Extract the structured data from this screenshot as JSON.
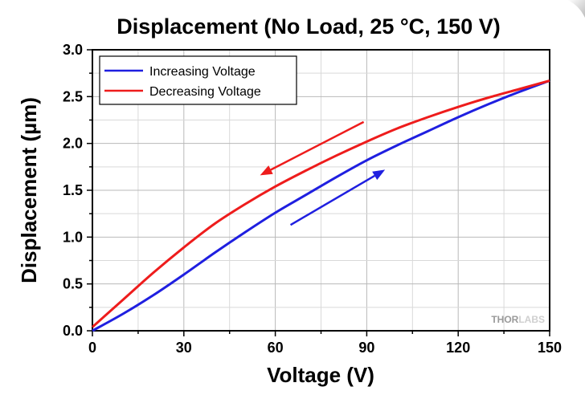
{
  "chart_data": {
    "type": "line",
    "title": "Displacement (No Load, 25 °C, 150 V)",
    "xlabel": "Voltage (V)",
    "ylabel": "Displacement (µm)",
    "xlim": [
      0,
      150
    ],
    "ylim": [
      0,
      3.0
    ],
    "xticks": [
      "0",
      "30",
      "60",
      "90",
      "120",
      "150"
    ],
    "yticks": [
      "0.0",
      "0.5",
      "1.0",
      "1.5",
      "2.0",
      "2.5",
      "3.0"
    ],
    "grid": true,
    "legend_position": "top-left",
    "series": [
      {
        "name": "Increasing Voltage",
        "color": "#1f1fe0",
        "x": [
          0,
          10,
          20,
          30,
          40,
          50,
          60,
          70,
          80,
          90,
          100,
          110,
          120,
          130,
          140,
          150
        ],
        "y": [
          0.0,
          0.18,
          0.38,
          0.6,
          0.83,
          1.05,
          1.26,
          1.45,
          1.64,
          1.82,
          1.98,
          2.13,
          2.28,
          2.42,
          2.55,
          2.67
        ]
      },
      {
        "name": "Decreasing Voltage",
        "color": "#ee1c1c",
        "x": [
          0,
          10,
          20,
          30,
          40,
          50,
          60,
          70,
          80,
          90,
          100,
          110,
          120,
          130,
          140,
          150
        ],
        "y": [
          0.04,
          0.33,
          0.62,
          0.89,
          1.14,
          1.35,
          1.54,
          1.71,
          1.87,
          2.02,
          2.16,
          2.28,
          2.39,
          2.49,
          2.58,
          2.67
        ]
      }
    ],
    "annotations": [
      {
        "type": "arrow",
        "color": "#ee1c1c",
        "from": [
          89,
          2.23
        ],
        "to": [
          55,
          1.66
        ]
      },
      {
        "type": "arrow",
        "color": "#1f1fe0",
        "from": [
          65,
          1.13
        ],
        "to": [
          96,
          1.72
        ]
      }
    ],
    "watermark": {
      "dark": "THOR",
      "light": "LABS"
    }
  }
}
